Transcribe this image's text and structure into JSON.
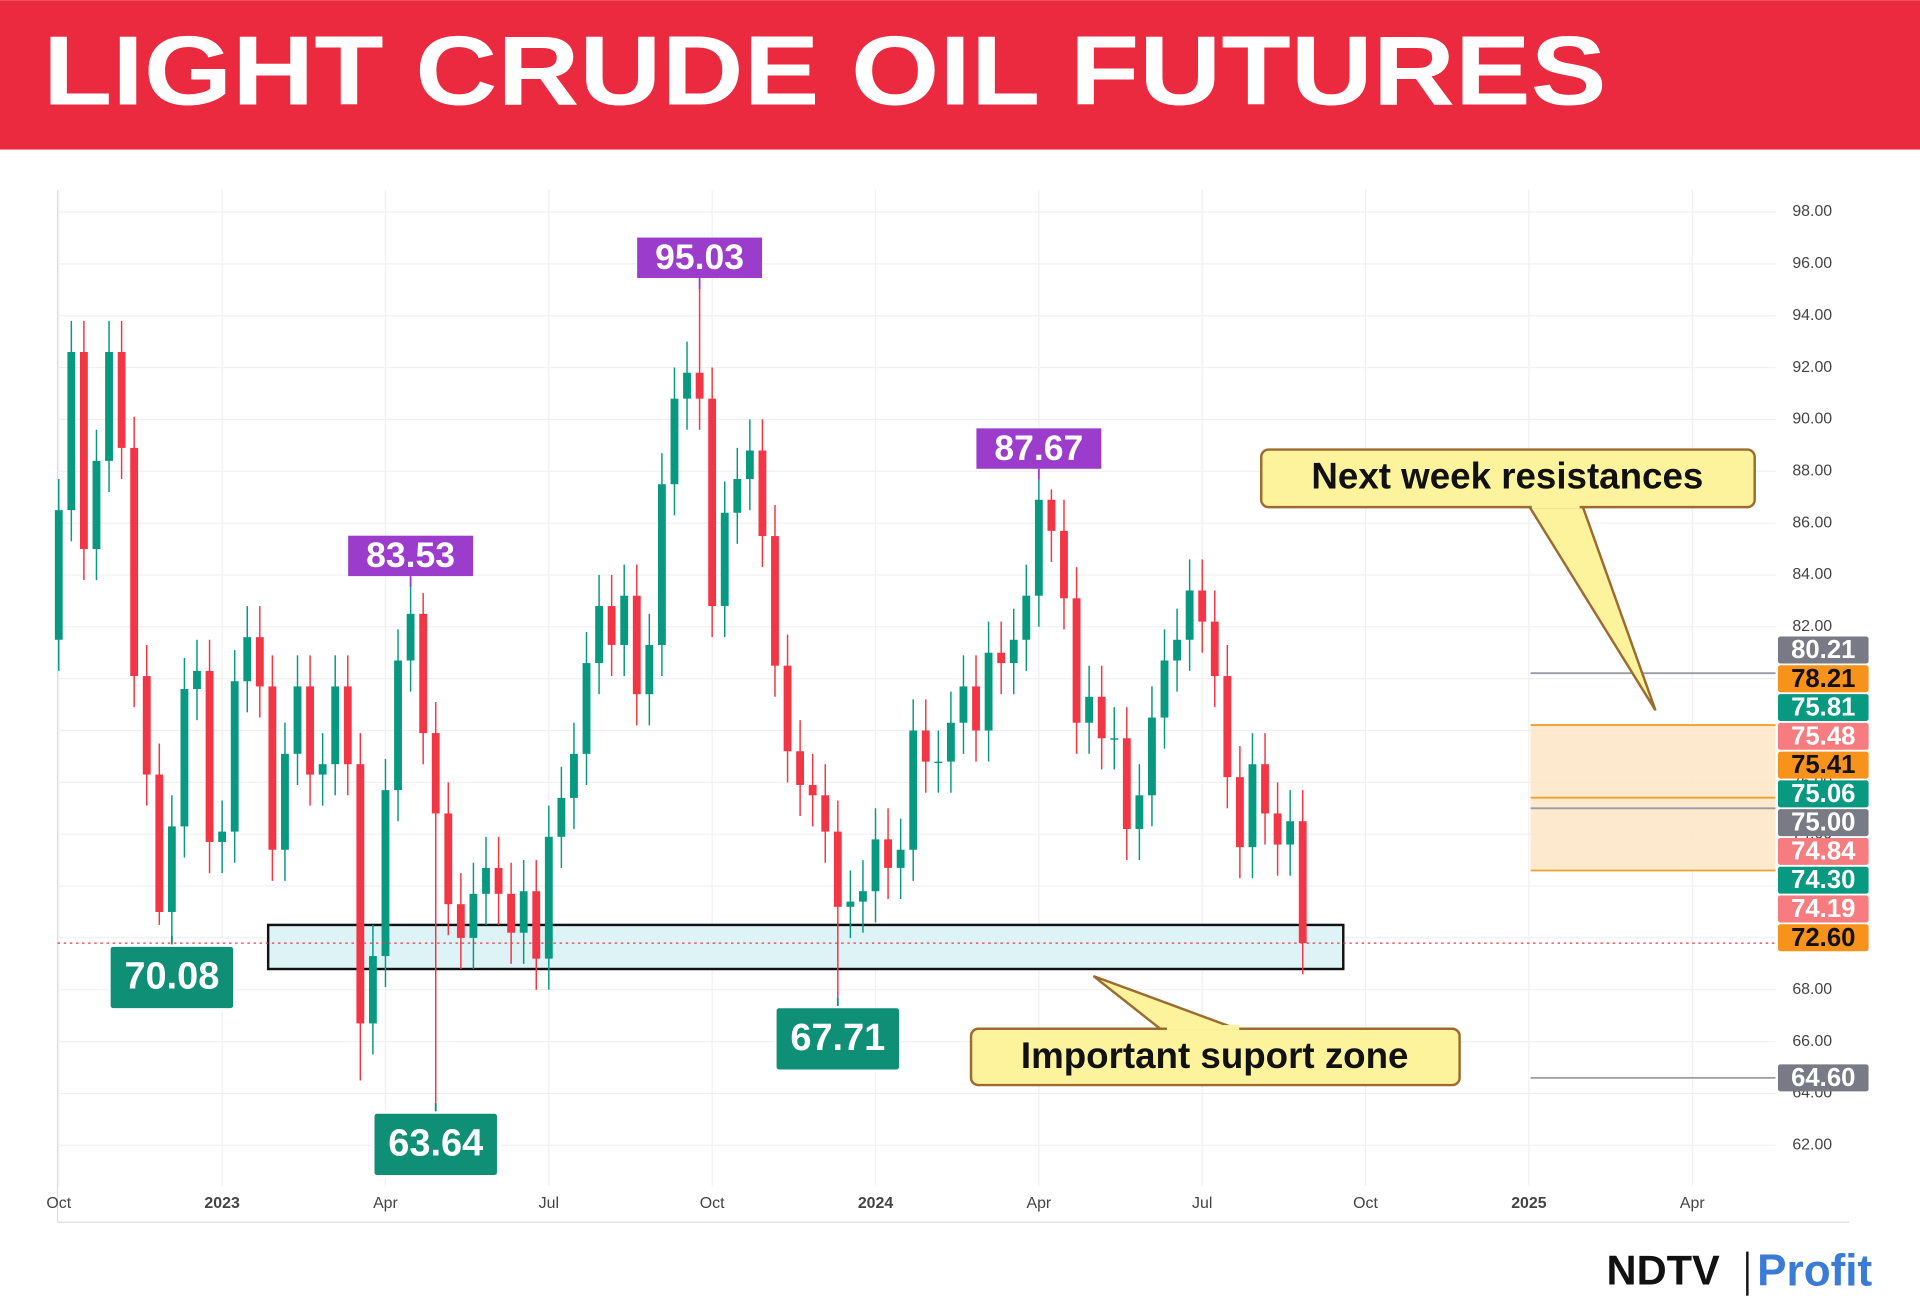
{
  "chart_data": {
    "type": "candlestick",
    "title": "LIGHT CRUDE OIL FUTURES",
    "xticks": [
      "Oct",
      "2023",
      "Apr",
      "Jul",
      "Oct",
      "2024",
      "Apr",
      "Jul",
      "Oct",
      "2025",
      "Apr"
    ],
    "ylim": [
      60.45,
      98.85
    ],
    "yticks": [
      {
        "value": 62,
        "label": "62.00"
      },
      {
        "value": 64,
        "label": "64.00"
      },
      {
        "value": 66,
        "label": "66.00"
      },
      {
        "value": 68,
        "label": "68.00"
      },
      {
        "value": 70,
        "label": "70.00"
      },
      {
        "value": 72,
        "label": "72.00"
      },
      {
        "value": 74,
        "label": "74.00"
      },
      {
        "value": 76,
        "label": "76.00"
      },
      {
        "value": 78,
        "label": "78.00"
      },
      {
        "value": 80,
        "label": "80.00"
      },
      {
        "value": 82,
        "label": "82.00"
      },
      {
        "value": 84,
        "label": "84.00"
      },
      {
        "value": 86,
        "label": "86.00"
      },
      {
        "value": 88,
        "label": "88.00"
      },
      {
        "value": 90,
        "label": "90.00"
      },
      {
        "value": 92,
        "label": "92.00"
      },
      {
        "value": 94,
        "label": "94.00"
      },
      {
        "value": 96,
        "label": "96.00"
      },
      {
        "value": 98,
        "label": "98.00"
      }
    ],
    "grid": true,
    "up_color": "#089981",
    "down_color": "#f23645",
    "candles": {
      "open": [
        81.5,
        86.5,
        92.6,
        85.0,
        88.4,
        92.6,
        88.9,
        80.1,
        76.3,
        71.0,
        74.3,
        79.6,
        80.3,
        73.7,
        74.1,
        79.9,
        81.6,
        79.7,
        73.4,
        77.1,
        79.7,
        76.3,
        76.7,
        79.7,
        76.7,
        66.7,
        69.3,
        75.7,
        80.7,
        82.5,
        77.9,
        74.8,
        71.3,
        70.0,
        71.7,
        72.7,
        71.7,
        70.2,
        71.8,
        69.2,
        73.9,
        75.4,
        77.1,
        80.6,
        82.8,
        81.3,
        83.2,
        79.4,
        81.3,
        87.5,
        90.8,
        91.8,
        90.8,
        82.8,
        86.4,
        87.7,
        88.8,
        85.5,
        80.5,
        77.2,
        75.9,
        75.5,
        74.1,
        71.2,
        71.4,
        71.8,
        73.8,
        72.7,
        73.4,
        78.0,
        76.8,
        76.8,
        78.3,
        79.7,
        78.0,
        81.0,
        80.6,
        81.5,
        83.2,
        86.9,
        85.7,
        83.1,
        78.3,
        79.3,
        77.7,
        77.7,
        74.2,
        75.5,
        78.5,
        80.7,
        81.5,
        83.4,
        82.2,
        80.1,
        76.2,
        73.5,
        76.7,
        74.8,
        73.6,
        74.5
      ],
      "high": [
        87.7,
        93.8,
        93.8,
        89.6,
        93.8,
        93.8,
        90.1,
        81.3,
        77.5,
        75.5,
        80.8,
        81.5,
        81.5,
        75.3,
        81.1,
        82.8,
        82.8,
        80.9,
        78.3,
        80.9,
        80.9,
        77.9,
        80.9,
        80.9,
        77.9,
        70.5,
        76.9,
        81.9,
        83.53,
        83.3,
        79.1,
        76.0,
        72.5,
        72.9,
        73.9,
        73.9,
        72.9,
        73.0,
        73.0,
        75.1,
        76.6,
        78.3,
        81.8,
        84.0,
        84.0,
        84.4,
        84.4,
        82.5,
        88.7,
        92.0,
        93.0,
        95.03,
        92.0,
        87.6,
        88.9,
        90.0,
        90.0,
        86.7,
        81.7,
        78.4,
        77.1,
        76.7,
        75.3,
        72.6,
        73.0,
        75.0,
        75.0,
        74.6,
        79.2,
        79.2,
        78.0,
        79.5,
        80.9,
        80.9,
        82.2,
        82.2,
        82.7,
        84.4,
        87.67,
        87.3,
        86.9,
        84.3,
        80.5,
        80.5,
        78.9,
        78.9,
        76.7,
        79.7,
        81.9,
        82.7,
        84.6,
        84.6,
        83.4,
        81.3,
        77.4,
        77.9,
        77.9,
        76.0,
        75.7,
        75.7
      ],
      "low": [
        80.3,
        85.3,
        83.8,
        83.8,
        87.2,
        87.7,
        78.9,
        75.1,
        70.5,
        70.08,
        73.1,
        78.4,
        72.5,
        72.5,
        72.9,
        78.7,
        78.5,
        72.2,
        72.2,
        75.9,
        75.1,
        75.1,
        75.5,
        75.5,
        64.5,
        65.5,
        68.1,
        74.5,
        79.5,
        76.7,
        63.64,
        70.1,
        68.8,
        68.8,
        70.5,
        70.5,
        69.0,
        69.0,
        68.0,
        68.0,
        72.7,
        74.2,
        75.9,
        79.4,
        80.1,
        80.1,
        78.2,
        78.2,
        80.1,
        86.3,
        89.6,
        89.6,
        81.6,
        81.6,
        85.2,
        86.5,
        84.3,
        79.3,
        76.0,
        74.7,
        74.3,
        72.9,
        67.71,
        70.0,
        70.2,
        70.6,
        71.5,
        71.5,
        72.2,
        75.6,
        75.6,
        75.6,
        77.1,
        76.8,
        76.8,
        79.4,
        79.4,
        80.3,
        82.0,
        84.5,
        81.9,
        77.1,
        77.1,
        76.5,
        76.5,
        73.0,
        73.0,
        74.3,
        77.3,
        79.5,
        80.3,
        81.0,
        78.9,
        75.0,
        72.3,
        72.3,
        73.6,
        72.4,
        72.4,
        68.6
      ],
      "close": [
        86.5,
        92.6,
        85.0,
        88.4,
        92.6,
        88.9,
        80.1,
        76.3,
        71.0,
        74.3,
        79.6,
        80.3,
        73.7,
        74.1,
        79.9,
        81.6,
        79.7,
        73.4,
        77.1,
        79.7,
        76.3,
        76.7,
        79.7,
        76.7,
        66.7,
        69.3,
        75.7,
        80.7,
        82.5,
        77.9,
        74.8,
        71.3,
        70.0,
        71.7,
        72.7,
        71.7,
        70.2,
        71.8,
        69.2,
        73.9,
        75.4,
        77.1,
        80.6,
        82.8,
        81.3,
        83.2,
        79.4,
        81.3,
        87.5,
        90.8,
        91.8,
        90.8,
        82.8,
        86.4,
        87.7,
        88.8,
        85.5,
        80.5,
        77.2,
        75.9,
        75.5,
        74.1,
        71.2,
        71.4,
        71.8,
        73.8,
        72.7,
        73.4,
        78.0,
        76.8,
        76.8,
        78.3,
        79.7,
        78.0,
        81.0,
        80.6,
        81.5,
        83.2,
        86.9,
        85.7,
        83.1,
        78.3,
        79.3,
        77.7,
        77.7,
        74.2,
        75.5,
        78.5,
        80.7,
        81.5,
        83.4,
        82.2,
        80.1,
        76.2,
        73.5,
        76.7,
        74.8,
        73.6,
        74.5,
        69.8
      ],
      "high_labels": [
        null,
        null,
        null,
        null,
        null,
        null,
        null,
        null,
        null,
        null,
        null,
        null,
        null,
        null,
        null,
        null,
        null,
        null,
        null,
        null,
        null,
        null,
        null,
        null,
        null,
        null,
        null,
        null,
        "83.53",
        null,
        null,
        null,
        null,
        null,
        null,
        null,
        null,
        null,
        null,
        null,
        null,
        null,
        null,
        null,
        null,
        null,
        null,
        null,
        null,
        null,
        null,
        "95.03",
        null,
        null,
        null,
        null,
        null,
        null,
        null,
        null,
        null,
        null,
        null,
        null,
        null,
        null,
        null,
        null,
        null,
        null,
        null,
        null,
        null,
        null,
        null,
        null,
        null,
        null,
        "87.67",
        null,
        null,
        null,
        null,
        null,
        null,
        null,
        null,
        null,
        null,
        null,
        null,
        null,
        null,
        null,
        null,
        null,
        null,
        null,
        null,
        null
      ],
      "low_labels": [
        null,
        null,
        null,
        null,
        null,
        null,
        null,
        null,
        null,
        "70.08",
        null,
        null,
        null,
        null,
        null,
        null,
        null,
        null,
        null,
        null,
        null,
        null,
        null,
        null,
        null,
        null,
        null,
        null,
        null,
        null,
        "63.64",
        null,
        null,
        null,
        null,
        null,
        null,
        null,
        null,
        null,
        null,
        null,
        null,
        null,
        null,
        null,
        null,
        null,
        null,
        null,
        null,
        null,
        null,
        null,
        null,
        null,
        null,
        null,
        null,
        null,
        null,
        null,
        "67.71",
        null,
        null,
        null,
        null,
        null,
        null,
        null,
        null,
        null,
        null,
        null,
        null,
        null,
        null,
        null,
        null,
        null,
        null,
        null,
        null,
        null,
        null,
        null,
        null,
        null,
        null,
        null,
        null,
        null,
        null,
        null,
        null,
        null,
        null,
        null,
        null,
        null
      ]
    },
    "high_label_color": "#9c3ccc",
    "low_label_color": "#0f8f75",
    "price_levels": {
      "values": [
        80.21,
        78.21,
        75.81,
        75.48,
        75.41,
        75.06,
        75.0,
        74.84,
        74.3,
        74.19,
        72.6,
        64.6
      ],
      "value_labels": [
        "80.21",
        "78.21",
        "75.81",
        "75.48",
        "75.41",
        "75.06",
        "75.00",
        "74.84",
        "74.30",
        "74.19",
        "72.60",
        "64.60"
      ],
      "colors": [
        "#787b86",
        "#f7931a",
        "#089981",
        "#f77c80",
        "#f7931a",
        "#089981",
        "#787b86",
        "#f77c80",
        "#089981",
        "#f77c80",
        "#f7931a",
        "#787b86"
      ],
      "text_colors": [
        "#ffffff",
        "#111111",
        "#ffffff",
        "#ffffff",
        "#111111",
        "#ffffff",
        "#ffffff",
        "#ffffff",
        "#ffffff",
        "#ffffff",
        "#111111",
        "#ffffff"
      ]
    },
    "support_zone": {
      "label": "Important suport zone",
      "range": [
        68.8,
        70.5
      ]
    },
    "annotations": [
      "Next week resistances"
    ],
    "logo": {
      "brand": "NDTV",
      "product": "Profit"
    }
  }
}
